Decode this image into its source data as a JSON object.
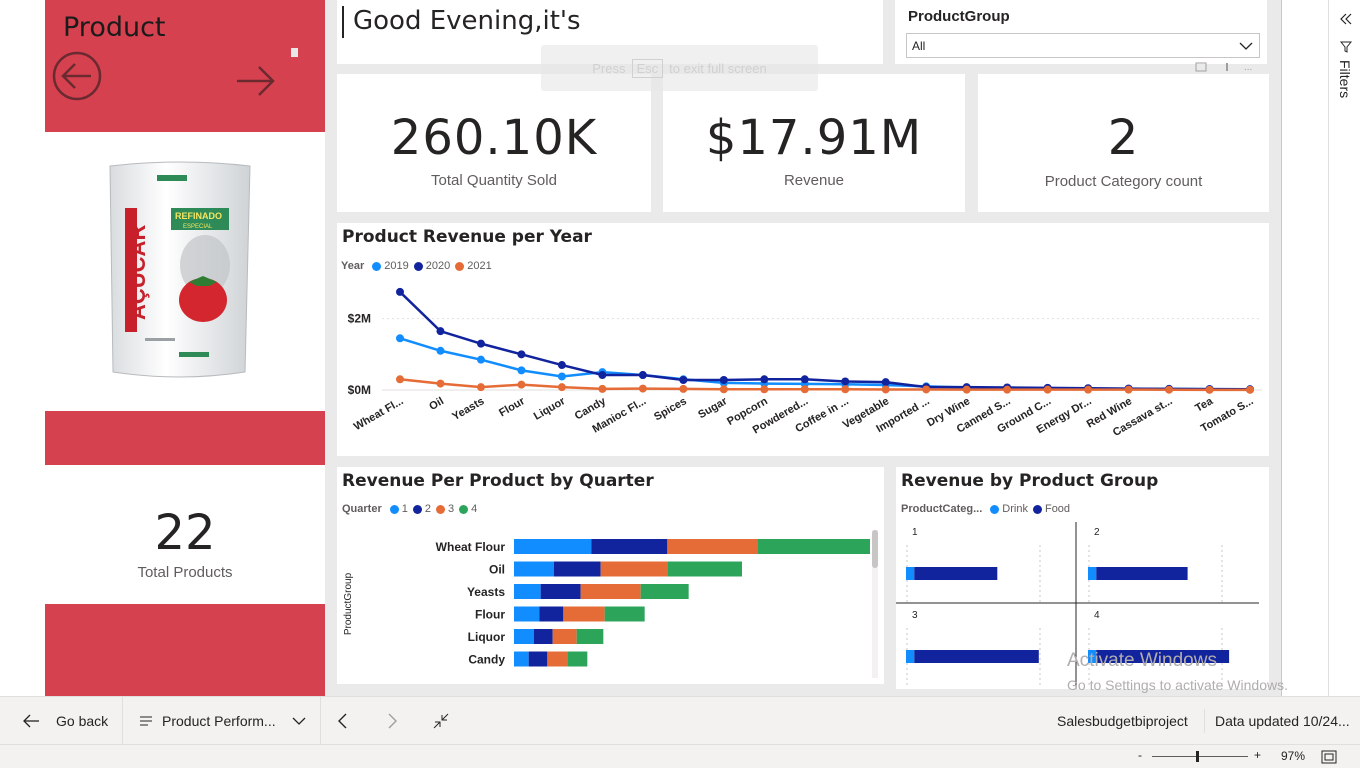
{
  "left_panel": {
    "title": "Product",
    "product_image_brand": "AÇÚCAR",
    "product_image_sub": "REFINADO",
    "product_image_sub2": "ESPECIAL",
    "total_products_value": "22",
    "total_products_label": "Total Products"
  },
  "greeting": {
    "text": "Good Evening,it's"
  },
  "overlay_hint": {
    "text_pre": "Press",
    "key": "Esc",
    "text_post": "to exit full screen"
  },
  "slicer": {
    "title": "ProductGroup",
    "value": "All"
  },
  "kpis": [
    {
      "value": "260.10K",
      "label": "Total Quantity Sold"
    },
    {
      "value": "$17.91M",
      "label": "Revenue"
    },
    {
      "value": "2",
      "label": "Product Category count"
    }
  ],
  "line_chart": {
    "title": "Product Revenue per Year",
    "legend_title": "Year",
    "colors": [
      "#118dff",
      "#12239e",
      "#e66c37"
    ]
  },
  "bar_chart": {
    "title": "Revenue Per Product by Quarter",
    "legend_title": "Quarter",
    "y_axis_title": "ProductGroup",
    "colors": [
      "#118dff",
      "#12239e",
      "#e66c37",
      "#2ca55b"
    ]
  },
  "group_chart": {
    "title": "Revenue by Product Group",
    "legend_title": "ProductCateg...",
    "legend_items": [
      "Drink",
      "Food"
    ],
    "colors": [
      "#118dff",
      "#12239e"
    ],
    "panels": [
      "1",
      "2",
      "3",
      "4"
    ]
  },
  "chart_data": [
    {
      "type": "line",
      "title": "Product Revenue per Year",
      "ylabel_ticks": [
        "$0M",
        "$2M"
      ],
      "ylim": [
        0,
        3000000
      ],
      "categories": [
        "Wheat Fl...",
        "Oil",
        "Yeasts",
        "Flour",
        "Liquor",
        "Candy",
        "Manioc Fl...",
        "Spices",
        "Sugar",
        "Popcorn",
        "Powdered...",
        "Coffee in ...",
        "Vegetable",
        "Imported ...",
        "Dry Wine",
        "Canned S...",
        "Ground C...",
        "Energy Dr...",
        "Red Wine",
        "Cassava st...",
        "Tea",
        "Tomato S..."
      ],
      "series": [
        {
          "name": "2019",
          "values": [
            1450000,
            1100000,
            850000,
            550000,
            380000,
            500000,
            420000,
            300000,
            200000,
            180000,
            170000,
            160000,
            140000,
            100000,
            70000,
            60000,
            50000,
            40000,
            35000,
            30000,
            25000,
            20000
          ]
        },
        {
          "name": "2020",
          "values": [
            2750000,
            1650000,
            1300000,
            1000000,
            700000,
            420000,
            420000,
            280000,
            280000,
            300000,
            300000,
            240000,
            220000,
            80000,
            80000,
            70000,
            60000,
            50000,
            40000,
            30000,
            25000,
            20000
          ]
        },
        {
          "name": "2021",
          "values": [
            300000,
            180000,
            80000,
            150000,
            80000,
            30000,
            40000,
            30000,
            20000,
            20000,
            20000,
            20000,
            15000,
            15000,
            10000,
            10000,
            10000,
            10000,
            10000,
            8000,
            5000,
            5000
          ]
        }
      ]
    },
    {
      "type": "bar",
      "title": "Revenue Per Product by Quarter",
      "categories": [
        "Wheat Flour",
        "Oil",
        "Yeasts",
        "Flour",
        "Liquor",
        "Candy"
      ],
      "series": [
        {
          "name": "1",
          "values": [
            580000,
            300000,
            200000,
            190000,
            150000,
            110000
          ]
        },
        {
          "name": "2",
          "values": [
            570000,
            350000,
            300000,
            180000,
            140000,
            140000
          ]
        },
        {
          "name": "3",
          "values": [
            680000,
            500000,
            450000,
            310000,
            180000,
            150000
          ]
        },
        {
          "name": "4",
          "values": [
            840000,
            560000,
            360000,
            300000,
            200000,
            150000
          ]
        }
      ]
    },
    {
      "type": "bar",
      "title": "Revenue by Product Group",
      "panels": [
        {
          "name": "1",
          "Drink": 1,
          "Food": 10
        },
        {
          "name": "2",
          "Drink": 1,
          "Food": 11
        },
        {
          "name": "3",
          "Drink": 1,
          "Food": 15
        },
        {
          "name": "4",
          "Drink": 1,
          "Food": 16
        }
      ]
    }
  ],
  "watermark": {
    "line1": "Activate Windows",
    "line2": "Go to Settings to activate Windows."
  },
  "filters_pane": {
    "label": "Filters"
  },
  "bottom_bar": {
    "go_back": "Go back",
    "page_name": "Product Perform...",
    "workspace": "Salesbudgetbiproject",
    "data_updated": "Data updated 10/24..."
  },
  "status_bar": {
    "zoom": "97%",
    "zoom_minus": "-",
    "zoom_plus": "+"
  }
}
